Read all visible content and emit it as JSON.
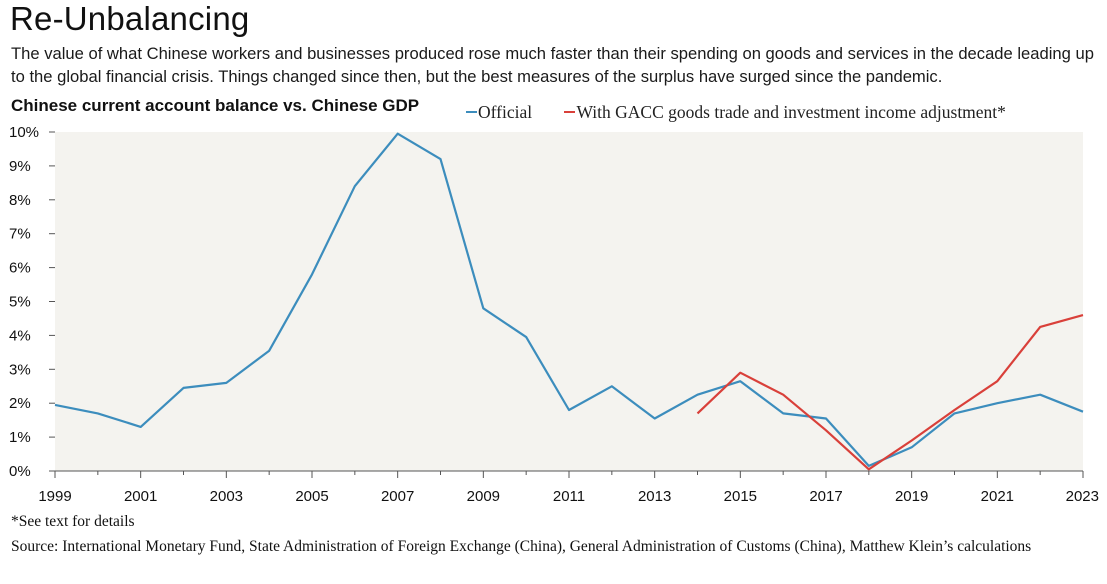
{
  "header": {
    "title": "Re-Unbalancing",
    "subtitle": "The value of what Chinese workers and businesses produced rose much faster than their spending on goods and services in the decade leading up to the global financial crisis. Things changed since then, but the best measures of the surplus have surged since the pandemic."
  },
  "colors": {
    "official": "#3c8dbd",
    "adjusted": "#d9403a",
    "plot_background": "#f4f3ef"
  },
  "chart_data": {
    "type": "line",
    "title": "Chinese current account balance vs. Chinese GDP",
    "xlabel": "",
    "ylabel": "",
    "xlim": [
      1999,
      2023
    ],
    "ylim": [
      0,
      10
    ],
    "x_ticks": [
      "1999",
      "2001",
      "2003",
      "2005",
      "2007",
      "2009",
      "2011",
      "2013",
      "2015",
      "2017",
      "2019",
      "2021",
      "2023"
    ],
    "y_ticks": [
      "0%",
      "1%",
      "2%",
      "3%",
      "4%",
      "5%",
      "6%",
      "7%",
      "8%",
      "9%",
      "10%"
    ],
    "grid": false,
    "legend_position": "top",
    "series": [
      {
        "name": "Official",
        "color": "#3c8dbd",
        "x": [
          1999,
          2000,
          2001,
          2002,
          2003,
          2004,
          2005,
          2006,
          2007,
          2008,
          2009,
          2010,
          2011,
          2012,
          2013,
          2014,
          2015,
          2016,
          2017,
          2018,
          2019,
          2020,
          2021,
          2022,
          2023
        ],
        "values": [
          1.95,
          1.7,
          1.3,
          2.45,
          2.6,
          3.55,
          5.8,
          8.4,
          9.95,
          9.2,
          4.8,
          3.95,
          1.8,
          2.5,
          1.55,
          2.25,
          2.65,
          1.7,
          1.55,
          0.15,
          0.7,
          1.7,
          2.0,
          2.25,
          1.75
        ]
      },
      {
        "name": "With GACC goods trade and investment income adjustment*",
        "color": "#d9403a",
        "x": [
          2014,
          2015,
          2016,
          2017,
          2018,
          2019,
          2020,
          2021,
          2022,
          2023
        ],
        "values": [
          1.7,
          2.9,
          2.25,
          1.2,
          0.05,
          0.9,
          1.8,
          2.65,
          4.25,
          4.6
        ]
      }
    ]
  },
  "footer": {
    "footnote": "*See text for details",
    "source": "Source: International Monetary Fund, State Administration of Foreign Exchange (China), General Administration of Customs (China), Matthew Klein’s calculations"
  }
}
